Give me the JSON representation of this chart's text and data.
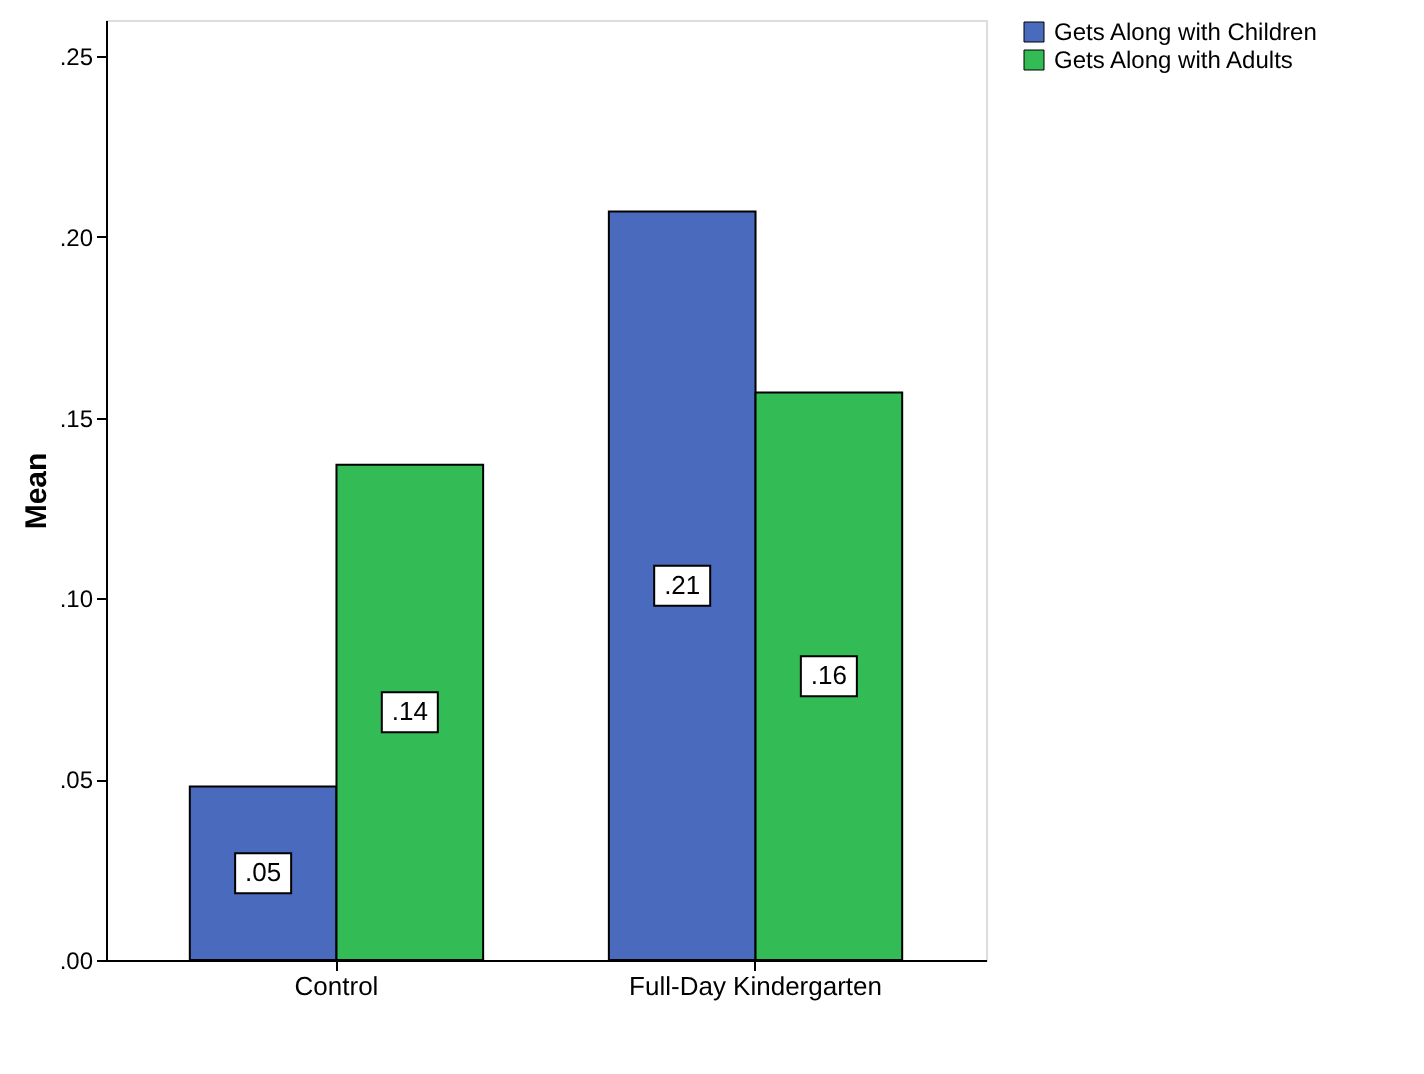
{
  "chart_data": {
    "type": "bar",
    "ylabel": "Mean",
    "categories": [
      "Control",
      "Full-Day Kindergarten"
    ],
    "series": [
      {
        "name": "Gets Along with Children",
        "color": "#4a6bbd",
        "values": [
          0.048,
          0.207
        ],
        "value_labels": [
          ".05",
          ".21"
        ]
      },
      {
        "name": "Gets Along with Adults",
        "color": "#33bb55",
        "values": [
          0.137,
          0.157
        ],
        "value_labels": [
          ".14",
          ".16"
        ]
      }
    ],
    "ylim": [
      0,
      0.26
    ],
    "yticks": [
      {
        "value": 0,
        "label": ".00"
      },
      {
        "value": 0.05,
        "label": ".05"
      },
      {
        "value": 0.1,
        "label": ".10"
      },
      {
        "value": 0.15,
        "label": ".15"
      },
      {
        "value": 0.2,
        "label": ".20"
      },
      {
        "value": 0.25,
        "label": ".25"
      }
    ],
    "grid": false,
    "legend": "top right"
  }
}
